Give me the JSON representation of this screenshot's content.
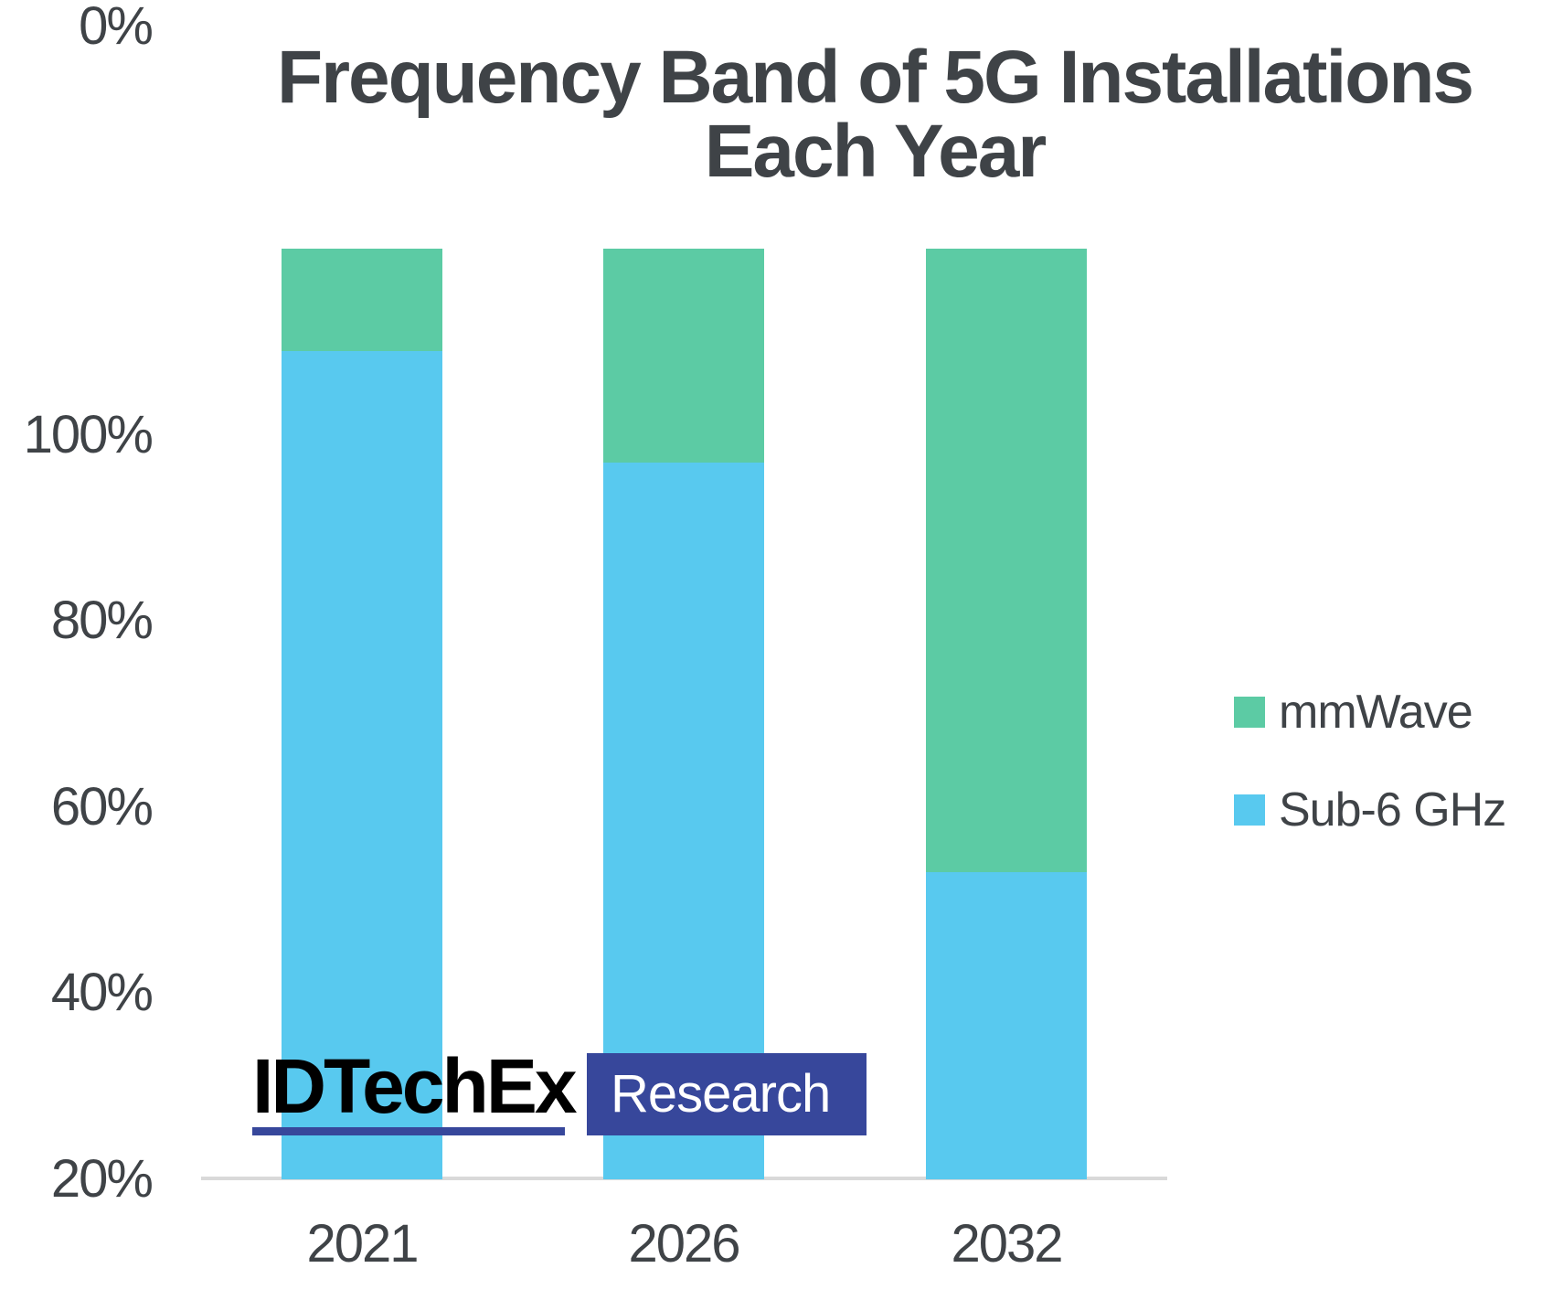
{
  "title": {
    "line1": "Frequency Band of 5G Installations",
    "line2": "Each Year"
  },
  "chart_data": {
    "type": "bar",
    "stacked": true,
    "percent_stacked": true,
    "title": "Frequency Band of 5G Installations Each Year",
    "categories": [
      "2021",
      "2026",
      "2032"
    ],
    "series": [
      {
        "name": "mmWave",
        "color": "#5CCBA4",
        "values": [
          11,
          23,
          67
        ]
      },
      {
        "name": "Sub-6 GHz",
        "color": "#58C9EF",
        "values": [
          89,
          77,
          33
        ]
      }
    ],
    "xlabel": "",
    "ylabel": "",
    "ylim": [
      0,
      100
    ],
    "yticks": [
      "100%",
      "80%",
      "60%",
      "40%",
      "20%",
      "0%"
    ],
    "grid": false,
    "legend_position": "right"
  },
  "legend": {
    "items": [
      {
        "label": "mmWave",
        "color": "#5CCBA4"
      },
      {
        "label": "Sub-6 GHz",
        "color": "#58C9EF"
      }
    ]
  },
  "logo": {
    "brand": "IDTechEx",
    "suffix": "Research",
    "accent_color": "#37479B"
  },
  "axis": {
    "baseline_color": "#D9D9D9"
  }
}
